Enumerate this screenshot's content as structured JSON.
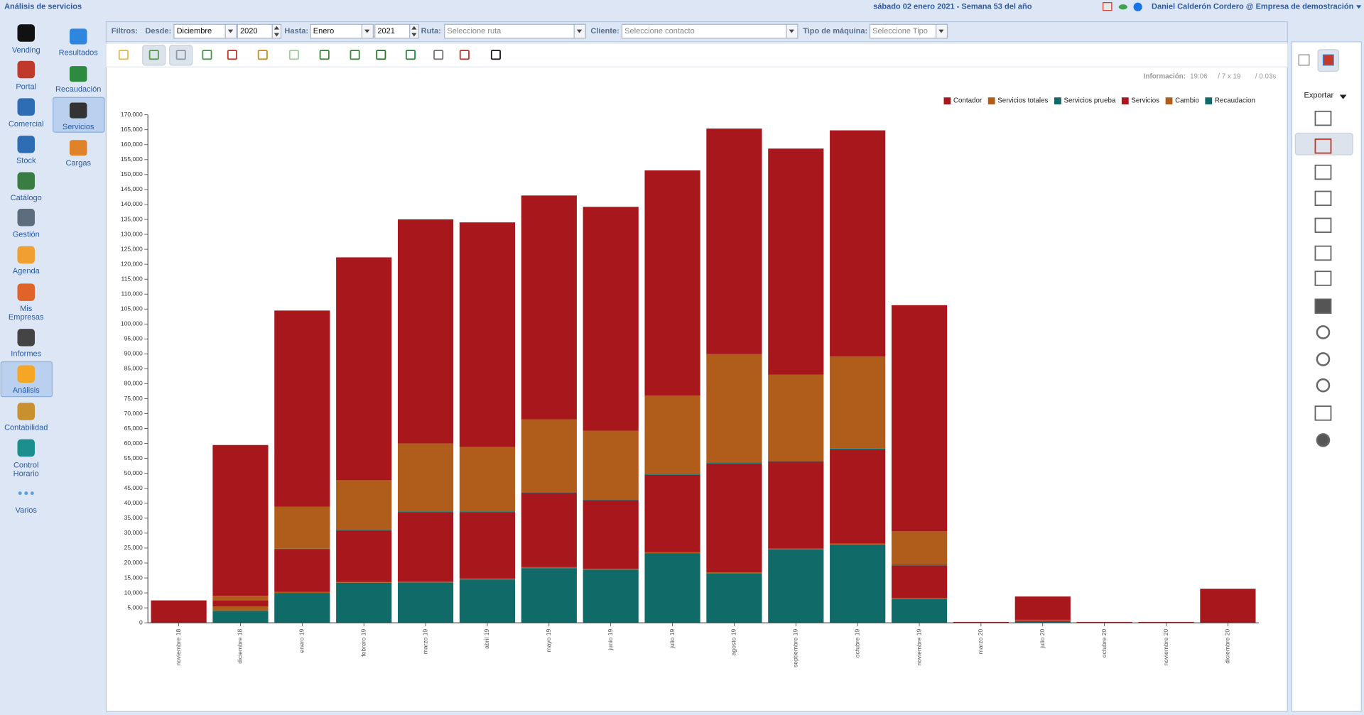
{
  "header": {
    "title": "Análisis de servicios",
    "date": "sábado 02 enero 2021 - Semana 53 del año",
    "user": "Daniel Calderón Cordero @ Empresa de demostración"
  },
  "sidebar": {
    "main": [
      {
        "lines": [
          "Vending"
        ]
      },
      {
        "lines": [
          "Portal"
        ]
      },
      {
        "lines": [
          "Comercial"
        ]
      },
      {
        "lines": [
          "Stock"
        ]
      },
      {
        "lines": [
          "Catálogo"
        ]
      },
      {
        "lines": [
          "Gestión"
        ]
      },
      {
        "lines": [
          "Agenda"
        ]
      },
      {
        "lines": [
          "Mis",
          "Empresas"
        ]
      },
      {
        "lines": [
          "Informes"
        ]
      },
      {
        "lines": [
          "Análisis"
        ]
      },
      {
        "lines": [
          "Contabilidad"
        ]
      },
      {
        "lines": [
          "Control",
          "Horario"
        ]
      },
      {
        "lines": [
          "Varios"
        ]
      }
    ],
    "sub": [
      {
        "lines": [
          "Resultados"
        ]
      },
      {
        "lines": [
          "Recaudación"
        ]
      },
      {
        "lines": [
          "Servicios"
        ]
      },
      {
        "lines": [
          "Cargas"
        ]
      }
    ]
  },
  "filters": {
    "label": "Filtros:",
    "desde_label": "Desde:",
    "desde_month": "Diciembre",
    "desde_year": "2020",
    "hasta_label": "Hasta:",
    "hasta_month": "Enero",
    "hasta_year": "2021",
    "ruta_label": "Ruta:",
    "ruta_placeholder": "Seleccione ruta",
    "cliente_label": "Cliente:",
    "cliente_placeholder": "Seleccione contacto",
    "tipo_label": "Tipo de máquina:",
    "tipo_placeholder": "Seleccione Tipo"
  },
  "info": {
    "label": "Información:",
    "time": "19:06",
    "size": "/ 7 x 19",
    "duration": "/ 0.03s"
  },
  "export_label": "Exportar",
  "chart_data": {
    "type": "stacked_bar",
    "legend": "top-right",
    "categories": [
      "noviembre 18",
      "diciembre 18",
      "enero 19",
      "febrero 19",
      "marzo 19",
      "abril 19",
      "mayo 19",
      "junio 19",
      "julio 19",
      "agosto 19",
      "septiembre 19",
      "octubre 19",
      "noviembre 19",
      "marzo 20",
      "julio 20",
      "octubre 20",
      "noviembre 20",
      "diciembre 20"
    ],
    "series": [
      {
        "name": "Contador",
        "color": "#a8171b",
        "values": [
          7500,
          50500,
          65700,
          74600,
          75000,
          75200,
          74900,
          74900,
          75400,
          75500,
          75700,
          75700,
          75700,
          300,
          7800,
          300,
          300,
          11400
        ]
      },
      {
        "name": "Servicios totales",
        "color": "#b05c1a",
        "values": [
          0,
          1500,
          14000,
          16600,
          22700,
          21500,
          24400,
          23000,
          26200,
          36300,
          28800,
          30800,
          11100,
          0,
          300,
          0,
          0,
          0
        ]
      },
      {
        "name": "Servicios prueba",
        "color": "#0f6a68",
        "values": [
          0,
          0,
          300,
          300,
          300,
          300,
          300,
          300,
          300,
          300,
          300,
          300,
          300,
          0,
          0,
          0,
          0,
          0
        ]
      },
      {
        "name": "Servicios",
        "color": "#a8171b",
        "values": [
          0,
          2000,
          14200,
          17100,
          23200,
          22200,
          24800,
          22900,
          25900,
          36400,
          29100,
          31500,
          11000,
          0,
          300,
          0,
          0,
          0
        ]
      },
      {
        "name": "Cambio",
        "color": "#b05c1a",
        "values": [
          0,
          1500,
          300,
          300,
          300,
          300,
          300,
          300,
          300,
          300,
          300,
          300,
          300,
          0,
          0,
          0,
          0,
          0
        ]
      },
      {
        "name": "Recaudacion",
        "color": "#0f6a68",
        "values": [
          0,
          4000,
          10000,
          13400,
          13500,
          14500,
          18300,
          17800,
          23300,
          16600,
          24500,
          26200,
          7900,
          0,
          400,
          0,
          0,
          0
        ]
      }
    ],
    "ylim": [
      0,
      170000
    ],
    "yticks": [
      0,
      {
        "value": 5000,
        "label": "5,000"
      },
      {
        "value": 10000,
        "label": "10,000"
      },
      {
        "value": 15000,
        "label": "15,000"
      },
      {
        "value": 20000,
        "label": "20,000"
      },
      {
        "value": 25000,
        "label": "25,000"
      },
      {
        "value": 30000,
        "label": "30,000"
      },
      {
        "value": 35000,
        "label": "35,000"
      },
      {
        "value": 40000,
        "label": "40,000"
      },
      {
        "value": 45000,
        "label": "45,000"
      },
      {
        "value": 50000,
        "label": "50,000"
      },
      {
        "value": 55000,
        "label": "55,000"
      },
      {
        "value": 60000,
        "label": "60,000"
      },
      {
        "value": 65000,
        "label": "65,000"
      },
      {
        "value": 70000,
        "label": "70,000"
      },
      {
        "value": 75000,
        "label": "75,000"
      },
      {
        "value": 80000,
        "label": "80,000"
      },
      {
        "value": 85000,
        "label": "85,000"
      },
      {
        "value": 90000,
        "label": "90,000"
      },
      {
        "value": 95000,
        "label": "95,000"
      },
      {
        "value": 100000,
        "label": "100,000"
      },
      {
        "value": 105000,
        "label": "105,000"
      },
      {
        "value": 110000,
        "label": "110,000"
      },
      {
        "value": 115000,
        "label": "115,000"
      },
      {
        "value": 120000,
        "label": "120,000"
      },
      {
        "value": 125000,
        "label": "125,000"
      },
      {
        "value": 130000,
        "label": "130,000"
      },
      {
        "value": 135000,
        "label": "135,000"
      },
      {
        "value": 140000,
        "label": "140,000"
      },
      {
        "value": 145000,
        "label": "145,000"
      },
      {
        "value": 150000,
        "label": "150,000"
      },
      {
        "value": 155000,
        "label": "155,000"
      },
      {
        "value": 160000,
        "label": "160,000"
      },
      {
        "value": 165000,
        "label": "165,000"
      },
      {
        "value": 170000,
        "label": "170,000"
      }
    ],
    "grid": false
  }
}
